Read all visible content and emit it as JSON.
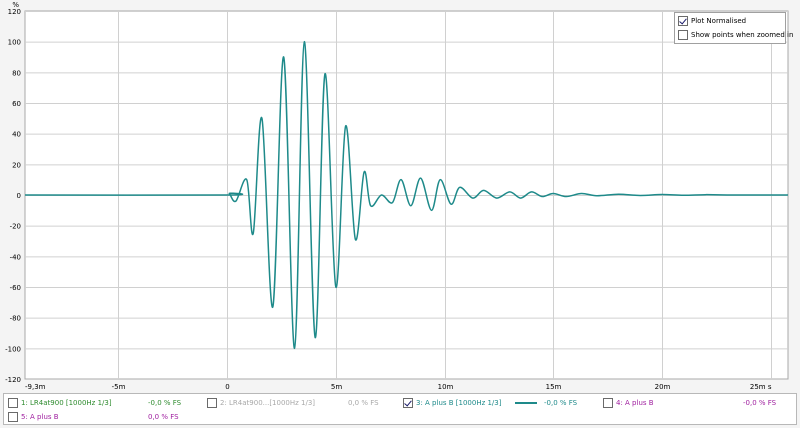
{
  "colors": {
    "trace": "#1e8a8a",
    "grid": "#d0d0d0",
    "series1": "#2e8b2e",
    "series2": "#a8a8a8",
    "series3": "#1e8a8a",
    "series4": "#a020a0",
    "series5": "#a020a0"
  },
  "chart_data": {
    "type": "line",
    "ylabel": "%",
    "xlim": [
      -9.3,
      25.8
    ],
    "ylim": [
      -120,
      120
    ],
    "x_unit": "ms",
    "y_ticks": [
      "120",
      "100",
      "80",
      "60",
      "40",
      "20",
      "0",
      "-20",
      "-40",
      "-60",
      "-80",
      "-100",
      "-120"
    ],
    "x_ticks": [
      "-9,3m",
      "-5m",
      "0",
      "5m",
      "10m",
      "15m",
      "20m",
      "25m s"
    ],
    "x_tick_values": [
      -9.3,
      -5,
      0,
      5,
      10,
      15,
      20,
      25
    ],
    "grid": true,
    "series": [
      {
        "name": "3: A plus B [1000Hz 1/3]",
        "points": [
          [
            -9.3,
            0
          ],
          [
            0,
            0
          ],
          [
            0.1,
            1
          ],
          [
            0.4,
            -4
          ],
          [
            0.9,
            10
          ],
          [
            1.2,
            -25
          ],
          [
            1.6,
            50
          ],
          [
            2.1,
            -73
          ],
          [
            2.6,
            90
          ],
          [
            3.1,
            -100
          ],
          [
            3.55,
            100
          ],
          [
            4.05,
            -93
          ],
          [
            4.5,
            79
          ],
          [
            5.0,
            -60
          ],
          [
            5.45,
            45
          ],
          [
            5.9,
            -29
          ],
          [
            6.3,
            15
          ],
          [
            6.6,
            -7
          ],
          [
            7.1,
            0
          ],
          [
            7.6,
            -5
          ],
          [
            8.0,
            10
          ],
          [
            8.45,
            -7
          ],
          [
            8.9,
            11
          ],
          [
            9.4,
            -10
          ],
          [
            9.8,
            10
          ],
          [
            10.3,
            -6
          ],
          [
            10.7,
            5
          ],
          [
            11.3,
            -2
          ],
          [
            11.8,
            3
          ],
          [
            12.4,
            -2
          ],
          [
            13.0,
            2
          ],
          [
            13.5,
            -2
          ],
          [
            14.0,
            2
          ],
          [
            14.5,
            -1
          ],
          [
            15.0,
            1
          ],
          [
            15.6,
            -1
          ],
          [
            16.3,
            1
          ],
          [
            17.0,
            -0.5
          ],
          [
            18.0,
            0.5
          ],
          [
            19.0,
            -0.3
          ],
          [
            20.0,
            0.3
          ],
          [
            21.0,
            -0.2
          ],
          [
            22.0,
            0.2
          ],
          [
            23.0,
            0
          ],
          [
            25.8,
            0
          ]
        ]
      }
    ]
  },
  "options": {
    "plot_normalised": {
      "label": "Plot Normalised",
      "checked": true
    },
    "show_points": {
      "label": "Show points when zoomed in",
      "checked": false
    }
  },
  "legend": {
    "items": [
      {
        "label": "1: LR4at900 [1000Hz 1/3]",
        "value": "-0,0 % FS",
        "checked": false
      },
      {
        "label": "2: LR4at900...[1000Hz 1/3]",
        "value": "0,0 % FS",
        "checked": false
      },
      {
        "label": "3: A plus B [1000Hz 1/3]",
        "value": "-0,0 % FS",
        "checked": true
      },
      {
        "label": "4: A plus B",
        "value": "-0,0 % FS",
        "checked": false
      },
      {
        "label": "5: A plus B",
        "value": "0,0 % FS",
        "checked": false
      }
    ]
  }
}
